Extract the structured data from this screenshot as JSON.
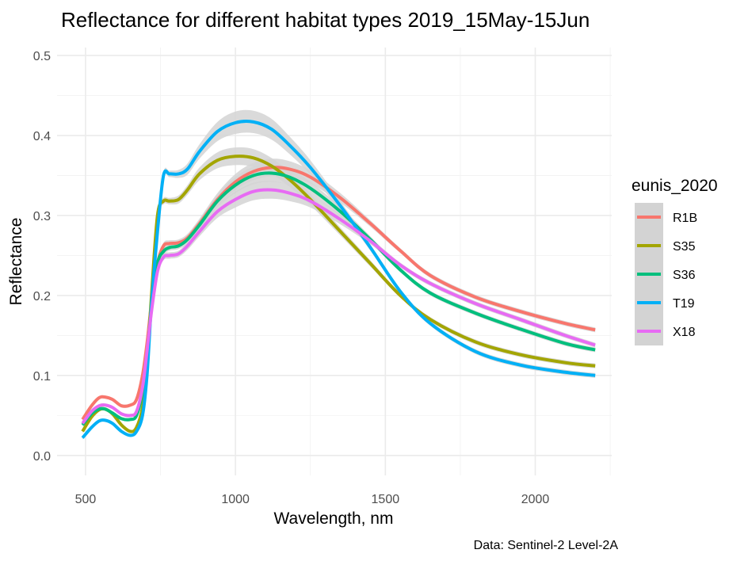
{
  "chart_data": {
    "type": "line",
    "title": "Reflectance for different habitat types 2019_15May-15Jun",
    "xlabel": "Wavelength, nm",
    "ylabel": "Reflectance",
    "caption": "Data: Sentinel-2 Level-2A",
    "xlim": [
      405,
      2255
    ],
    "ylim": [
      -0.025,
      0.51
    ],
    "x_ticks": [
      500,
      1000,
      1500,
      2000
    ],
    "x_tick_labels": [
      "500",
      "1000",
      "1500",
      "2000"
    ],
    "y_ticks": [
      0.0,
      0.1,
      0.2,
      0.3,
      0.4,
      0.5
    ],
    "y_tick_labels": [
      "0.0",
      "0.1",
      "0.2",
      "0.3",
      "0.4",
      "0.5"
    ],
    "grid": true,
    "confidence_band": true,
    "band_color": "#d3d3d3",
    "legend": {
      "title": "eunis_2020",
      "position": "right"
    },
    "series": [
      {
        "name": "R1B",
        "color": "#F8766D",
        "x": [
          490,
          520,
          545,
          565,
          590,
          620,
          650,
          670,
          690,
          705,
          720,
          740,
          760,
          780,
          810,
          840,
          880,
          940,
          1000,
          1060,
          1120,
          1180,
          1250,
          1350,
          1450,
          1550,
          1650,
          1800,
          1950,
          2100,
          2200
        ],
        "y": [
          0.045,
          0.062,
          0.072,
          0.073,
          0.07,
          0.062,
          0.063,
          0.07,
          0.1,
          0.14,
          0.19,
          0.24,
          0.262,
          0.265,
          0.266,
          0.272,
          0.29,
          0.32,
          0.342,
          0.355,
          0.36,
          0.358,
          0.348,
          0.322,
          0.29,
          0.256,
          0.225,
          0.198,
          0.18,
          0.165,
          0.157
        ],
        "band": [
          0.002,
          0.002,
          0.002,
          0.002,
          0.002,
          0.002,
          0.002,
          0.002,
          0.003,
          0.003,
          0.004,
          0.004,
          0.004,
          0.004,
          0.004,
          0.005,
          0.006,
          0.008,
          0.01,
          0.011,
          0.011,
          0.01,
          0.008,
          0.006,
          0.004,
          0.003,
          0.003,
          0.003,
          0.003,
          0.003,
          0.003
        ]
      },
      {
        "name": "S35",
        "color": "#A3A500",
        "x": [
          490,
          520,
          545,
          565,
          590,
          620,
          650,
          670,
          690,
          705,
          720,
          740,
          760,
          780,
          810,
          840,
          880,
          940,
          1000,
          1060,
          1120,
          1180,
          1250,
          1350,
          1450,
          1550,
          1650,
          1800,
          1950,
          2100,
          2200
        ],
        "y": [
          0.03,
          0.048,
          0.057,
          0.058,
          0.052,
          0.038,
          0.03,
          0.035,
          0.06,
          0.11,
          0.2,
          0.3,
          0.318,
          0.318,
          0.32,
          0.332,
          0.352,
          0.369,
          0.374,
          0.372,
          0.362,
          0.345,
          0.32,
          0.28,
          0.24,
          0.2,
          0.17,
          0.142,
          0.126,
          0.116,
          0.112
        ],
        "band": [
          0.002,
          0.002,
          0.002,
          0.002,
          0.002,
          0.002,
          0.002,
          0.002,
          0.003,
          0.003,
          0.004,
          0.004,
          0.004,
          0.004,
          0.005,
          0.006,
          0.008,
          0.01,
          0.011,
          0.011,
          0.01,
          0.009,
          0.007,
          0.005,
          0.004,
          0.003,
          0.003,
          0.003,
          0.003,
          0.003,
          0.003
        ]
      },
      {
        "name": "S36",
        "color": "#00BF7D",
        "x": [
          490,
          520,
          545,
          565,
          590,
          620,
          650,
          670,
          690,
          705,
          720,
          740,
          760,
          780,
          810,
          840,
          880,
          940,
          1000,
          1060,
          1120,
          1180,
          1250,
          1350,
          1450,
          1550,
          1650,
          1800,
          1950,
          2100,
          2200
        ],
        "y": [
          0.038,
          0.052,
          0.058,
          0.058,
          0.053,
          0.046,
          0.045,
          0.05,
          0.08,
          0.125,
          0.185,
          0.24,
          0.255,
          0.26,
          0.262,
          0.27,
          0.288,
          0.318,
          0.338,
          0.35,
          0.353,
          0.348,
          0.334,
          0.305,
          0.27,
          0.232,
          0.203,
          0.178,
          0.158,
          0.14,
          0.132
        ],
        "band": [
          0.002,
          0.002,
          0.002,
          0.002,
          0.002,
          0.002,
          0.002,
          0.002,
          0.003,
          0.003,
          0.004,
          0.004,
          0.004,
          0.004,
          0.004,
          0.005,
          0.006,
          0.008,
          0.01,
          0.011,
          0.011,
          0.01,
          0.008,
          0.006,
          0.004,
          0.003,
          0.003,
          0.003,
          0.003,
          0.003,
          0.003
        ]
      },
      {
        "name": "T19",
        "color": "#00B0F6",
        "x": [
          490,
          520,
          545,
          565,
          590,
          620,
          650,
          670,
          690,
          705,
          720,
          740,
          760,
          780,
          810,
          840,
          880,
          940,
          1000,
          1060,
          1120,
          1180,
          1250,
          1350,
          1450,
          1550,
          1650,
          1800,
          1950,
          2100,
          2200
        ],
        "y": [
          0.022,
          0.035,
          0.043,
          0.044,
          0.04,
          0.03,
          0.025,
          0.03,
          0.05,
          0.1,
          0.19,
          0.28,
          0.35,
          0.352,
          0.352,
          0.358,
          0.38,
          0.405,
          0.416,
          0.417,
          0.408,
          0.388,
          0.36,
          0.312,
          0.26,
          0.205,
          0.165,
          0.13,
          0.113,
          0.104,
          0.1
        ],
        "band": [
          0.002,
          0.002,
          0.002,
          0.002,
          0.002,
          0.002,
          0.002,
          0.002,
          0.003,
          0.003,
          0.004,
          0.004,
          0.004,
          0.004,
          0.005,
          0.007,
          0.009,
          0.012,
          0.014,
          0.014,
          0.013,
          0.011,
          0.009,
          0.006,
          0.004,
          0.003,
          0.003,
          0.003,
          0.003,
          0.003,
          0.003
        ]
      },
      {
        "name": "X18",
        "color": "#E76BF3",
        "x": [
          490,
          520,
          545,
          565,
          590,
          620,
          650,
          670,
          690,
          705,
          720,
          740,
          760,
          780,
          810,
          840,
          880,
          940,
          1000,
          1060,
          1120,
          1180,
          1250,
          1350,
          1450,
          1550,
          1650,
          1800,
          1950,
          2100,
          2200
        ],
        "y": [
          0.04,
          0.055,
          0.062,
          0.063,
          0.06,
          0.052,
          0.05,
          0.055,
          0.085,
          0.13,
          0.18,
          0.23,
          0.248,
          0.25,
          0.252,
          0.262,
          0.28,
          0.305,
          0.32,
          0.33,
          0.332,
          0.328,
          0.318,
          0.295,
          0.268,
          0.238,
          0.215,
          0.19,
          0.17,
          0.15,
          0.138
        ],
        "band": [
          0.002,
          0.002,
          0.002,
          0.002,
          0.002,
          0.002,
          0.002,
          0.002,
          0.003,
          0.003,
          0.004,
          0.004,
          0.004,
          0.004,
          0.004,
          0.005,
          0.006,
          0.008,
          0.01,
          0.011,
          0.011,
          0.01,
          0.008,
          0.006,
          0.004,
          0.003,
          0.003,
          0.003,
          0.003,
          0.003,
          0.003
        ]
      }
    ]
  }
}
